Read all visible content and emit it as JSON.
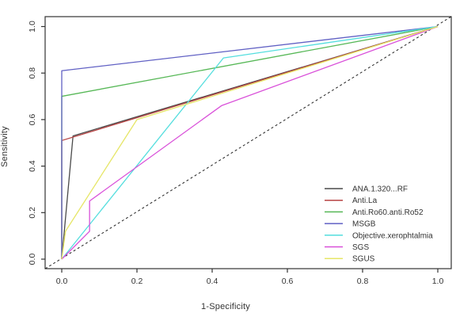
{
  "figure": {
    "background": "#ffffff",
    "axis_color": "#333333",
    "text_color": "#333333"
  },
  "chart_data": {
    "type": "line",
    "title": "",
    "xlabel": "1-Specificity",
    "ylabel": "Sensitivity",
    "xlim": [
      0,
      1
    ],
    "ylim": [
      0,
      1
    ],
    "x_ticks": [
      "0.0",
      "0.2",
      "0.4",
      "0.6",
      "0.8",
      "1.0"
    ],
    "x_tick_values": [
      0,
      0.2,
      0.4,
      0.6,
      0.8,
      1.0
    ],
    "y_ticks": [
      "0.0",
      "0.2",
      "0.4",
      "0.6",
      "0.8",
      "1.0"
    ],
    "y_tick_values": [
      0,
      0.2,
      0.4,
      0.6,
      0.8,
      1.0
    ],
    "grid": false,
    "legend_position": "bottomright",
    "series": [
      {
        "name": "ANA.1.320...RF",
        "color": "#4a4a4a",
        "points": [
          [
            0,
            0
          ],
          [
            0.03,
            0.53
          ],
          [
            1,
            1
          ]
        ]
      },
      {
        "name": "Anti.La",
        "color": "#b84444",
        "points": [
          [
            0,
            0
          ],
          [
            0,
            0.51
          ],
          [
            1,
            1
          ]
        ]
      },
      {
        "name": "Anti.Ro60.anti.Ro52",
        "color": "#57b857",
        "points": [
          [
            0,
            0
          ],
          [
            0,
            0.7
          ],
          [
            1,
            1
          ]
        ]
      },
      {
        "name": "MSGB",
        "color": "#6161c4",
        "points": [
          [
            0,
            0
          ],
          [
            0,
            0.81
          ],
          [
            1,
            1
          ]
        ]
      },
      {
        "name": "Objective.xerophtalmia",
        "color": "#54dede",
        "points": [
          [
            0,
            0
          ],
          [
            0.43,
            0.865
          ],
          [
            1,
            1
          ]
        ]
      },
      {
        "name": "SGS",
        "color": "#d950d9",
        "points": [
          [
            0,
            0
          ],
          [
            0.074,
            0.12
          ],
          [
            0.074,
            0.25
          ],
          [
            0.425,
            0.66
          ],
          [
            1,
            1
          ]
        ]
      },
      {
        "name": "SGUS",
        "color": "#e6e667",
        "points": [
          [
            0,
            0
          ],
          [
            0.01,
            0.12
          ],
          [
            0.2,
            0.6
          ],
          [
            1,
            1
          ]
        ]
      }
    ],
    "reference_line": {
      "name": "chance-diagonal",
      "color": "#222222",
      "style": "dashed",
      "points": [
        [
          -0.044,
          -0.041
        ],
        [
          1.036,
          1.043
        ]
      ]
    }
  }
}
